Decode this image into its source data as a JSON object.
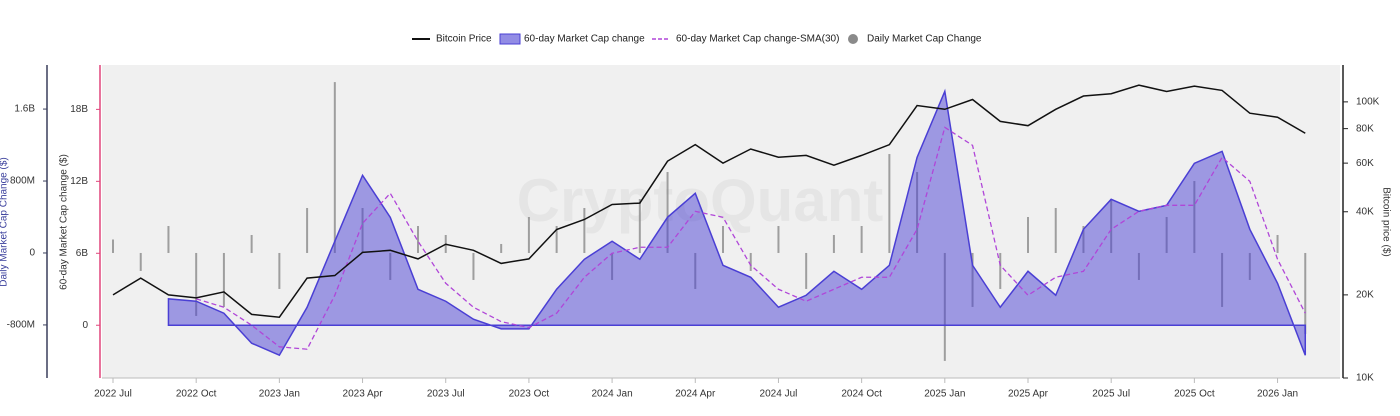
{
  "chart_data": {
    "type": "combo",
    "watermark": "CryptoQuant",
    "x_axis": {
      "ticks": [
        {
          "value": "2022-07",
          "label": "2022 Jul"
        },
        {
          "value": "2022-10",
          "label": "2022 Oct"
        },
        {
          "value": "2023-01",
          "label": "2023 Jan"
        },
        {
          "value": "2023-04",
          "label": "2023 Apr"
        },
        {
          "value": "2023-07",
          "label": "2023 Jul"
        },
        {
          "value": "2023-10",
          "label": "2023 Oct"
        },
        {
          "value": "2024-01",
          "label": "2024 Jan"
        },
        {
          "value": "2024-04",
          "label": "2024 Apr"
        },
        {
          "value": "2024-07",
          "label": "2024 Jul"
        },
        {
          "value": "2024-10",
          "label": "2024 Oct"
        },
        {
          "value": "2025-01",
          "label": "2025 Jan"
        },
        {
          "value": "2025-04",
          "label": "2025 Apr"
        },
        {
          "value": "2025-07",
          "label": "2025 Jul"
        },
        {
          "value": "2025-10",
          "label": "2025 Oct"
        },
        {
          "value": "2026-01",
          "label": "2026 Jan"
        }
      ]
    },
    "xlim": [
      "2022-07",
      "2026-03"
    ],
    "x": [
      "2022-07",
      "2022-08",
      "2022-09",
      "2022-10",
      "2022-11",
      "2022-12",
      "2023-01",
      "2023-02",
      "2023-03",
      "2023-04",
      "2023-05",
      "2023-06",
      "2023-07",
      "2023-08",
      "2023-09",
      "2023-10",
      "2023-11",
      "2023-12",
      "2024-01",
      "2024-02",
      "2024-03",
      "2024-04",
      "2024-05",
      "2024-06",
      "2024-07",
      "2024-08",
      "2024-09",
      "2024-10",
      "2024-11",
      "2024-12",
      "2025-01",
      "2025-02",
      "2025-03",
      "2025-04",
      "2025-05",
      "2025-06",
      "2025-07",
      "2025-08",
      "2025-09",
      "2025-10",
      "2025-11",
      "2025-12",
      "2026-01",
      "2026-02"
    ],
    "y_label": "60-day Market Cap change ($)",
    "ylim": [
      -4400000000,
      21700000000
    ],
    "yticks": [
      0,
      {
        "value": 6000000000,
        "label": "6B"
      },
      {
        "value": 12000000000,
        "label": "12B"
      },
      {
        "value": 18000000000,
        "label": "18B"
      }
    ],
    "y2_label": "Bitcoin price ($)",
    "y2_log": true,
    "y2lim": [
      10000,
      136000
    ],
    "y2ticks": [
      {
        "value": 10000,
        "label": "10K"
      },
      {
        "value": 20000,
        "label": "20K"
      },
      {
        "value": 40000,
        "label": "40K"
      },
      {
        "value": 60000,
        "label": "60K"
      },
      {
        "value": 80000,
        "label": "80K"
      },
      {
        "value": 100000,
        "label": "100K"
      }
    ],
    "y3_label": "Daily Market Cap Change ($)",
    "y3lim": [
      -1390000000,
      2090000000
    ],
    "y3ticks": [
      {
        "value": -800000000,
        "label": "-800M"
      },
      0,
      {
        "value": 800000000,
        "label": "800M"
      },
      {
        "value": 1600000000,
        "label": "1.6B"
      }
    ],
    "series": [
      {
        "name": "Bitcoin Price",
        "type": "line",
        "axis": "y2",
        "color": "#111111",
        "values": [
          20000,
          23000,
          20000,
          19500,
          20500,
          17000,
          16600,
          23000,
          23500,
          28500,
          29000,
          27000,
          30500,
          29000,
          26000,
          27000,
          34500,
          37500,
          42500,
          43000,
          61000,
          70000,
          60000,
          67500,
          63000,
          64000,
          59000,
          64000,
          70000,
          97000,
          94000,
          102000,
          85000,
          82000,
          94000,
          105000,
          107000,
          115000,
          109000,
          114000,
          110000,
          91000,
          88000,
          77000
        ]
      },
      {
        "name": "60-day Market Cap change",
        "type": "area",
        "axis": "y",
        "color": "#4a3fd4",
        "values": [
          null,
          null,
          2200000000,
          2000000000,
          1000000000,
          -1500000000,
          -2500000000,
          1500000000,
          7000000000,
          12500000000,
          9000000000,
          3000000000,
          2000000000,
          500000000,
          -300000000,
          -300000000,
          3000000000,
          5500000000,
          7000000000,
          5500000000,
          9000000000,
          11000000000,
          5000000000,
          4000000000,
          1500000000,
          2500000000,
          4500000000,
          3000000000,
          5000000000,
          14000000000,
          19500000000,
          5000000000,
          1500000000,
          4500000000,
          2500000000,
          8000000000,
          10500000000,
          9500000000,
          10000000000,
          13500000000,
          14500000000,
          8000000000,
          3500000000,
          -2500000000
        ]
      },
      {
        "name": "60-day Market Cap change-SMA(30)",
        "type": "dashed",
        "axis": "y",
        "color": "#b046d8",
        "values": [
          null,
          null,
          null,
          2200000000,
          1500000000,
          0,
          -1800000000,
          -2000000000,
          2500000000,
          8500000000,
          11000000000,
          7000000000,
          3500000000,
          1500000000,
          300000000,
          -200000000,
          1000000000,
          4000000000,
          6000000000,
          6500000000,
          6500000000,
          9500000000,
          9000000000,
          5000000000,
          3000000000,
          2000000000,
          3000000000,
          4000000000,
          4000000000,
          8000000000,
          16500000000,
          15000000000,
          5000000000,
          2500000000,
          4000000000,
          4500000000,
          8000000000,
          9500000000,
          10000000000,
          10000000000,
          14000000000,
          12000000000,
          5500000000,
          1000000000
        ]
      },
      {
        "name": "Daily Market Cap Change",
        "type": "bar",
        "axis": "y3",
        "color": "#8a8a8a",
        "values": [
          150000000,
          -200000000,
          300000000,
          -700000000,
          -600000000,
          200000000,
          -400000000,
          500000000,
          1900000000,
          500000000,
          -300000000,
          300000000,
          200000000,
          -300000000,
          100000000,
          400000000,
          300000000,
          500000000,
          -300000000,
          600000000,
          900000000,
          -400000000,
          300000000,
          -200000000,
          300000000,
          -400000000,
          200000000,
          300000000,
          1100000000,
          900000000,
          -1200000000,
          -600000000,
          -400000000,
          400000000,
          500000000,
          300000000,
          600000000,
          -300000000,
          400000000,
          800000000,
          -600000000,
          -300000000,
          200000000,
          -900000000
        ]
      }
    ]
  }
}
